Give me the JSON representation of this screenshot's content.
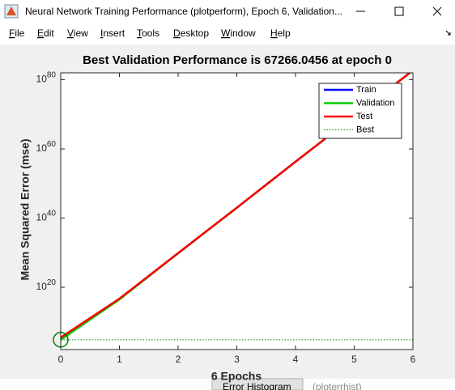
{
  "window": {
    "title": "Neural Network Training Performance (plotperform), Epoch 6, Validation...",
    "menu": [
      "File",
      "Edit",
      "View",
      "Insert",
      "Tools",
      "Desktop",
      "Window",
      "Help"
    ]
  },
  "chart_data": {
    "type": "line",
    "title": "Best Validation Performance is 67266.0456 at epoch 0",
    "xlabel": "6 Epochs",
    "ylabel": "Mean Squared Error  (mse)",
    "x": [
      0,
      1,
      2,
      3,
      4,
      5,
      6
    ],
    "xlim": [
      0,
      6
    ],
    "xticks": [
      0,
      1,
      2,
      3,
      4,
      5,
      6
    ],
    "ylim": [
      100.0,
      1e+82
    ],
    "log_y": true,
    "yticks": [
      {
        "value": 1e+20,
        "label": "10^20"
      },
      {
        "value": 1e+40,
        "label": "10^40"
      },
      {
        "value": 1e+60,
        "label": "10^60"
      },
      {
        "value": 1e+80,
        "label": "10^80"
      }
    ],
    "legend": "upper right",
    "series": [
      {
        "name": "Train",
        "color": "#0000ff",
        "values": [
          150000.0,
          4e+16,
          7e+29,
          1e+43,
          2e+56,
          3e+69,
          5e+82
        ]
      },
      {
        "name": "Validation",
        "color": "#00cc00",
        "values": [
          67266.0456,
          3e+16,
          7e+29,
          1e+43,
          2e+56,
          3e+69,
          5e+82
        ]
      },
      {
        "name": "Test",
        "color": "#ff0000",
        "values": [
          300000.0,
          5e+16,
          8e+29,
          1e+43,
          2e+56,
          3e+69,
          5e+82
        ]
      }
    ],
    "best": {
      "name": "Best",
      "color": "#008000",
      "epoch": 0,
      "value": 67266.0456
    }
  },
  "footer": {
    "button": "Error Histogram",
    "function": "(ploterrhist)"
  }
}
